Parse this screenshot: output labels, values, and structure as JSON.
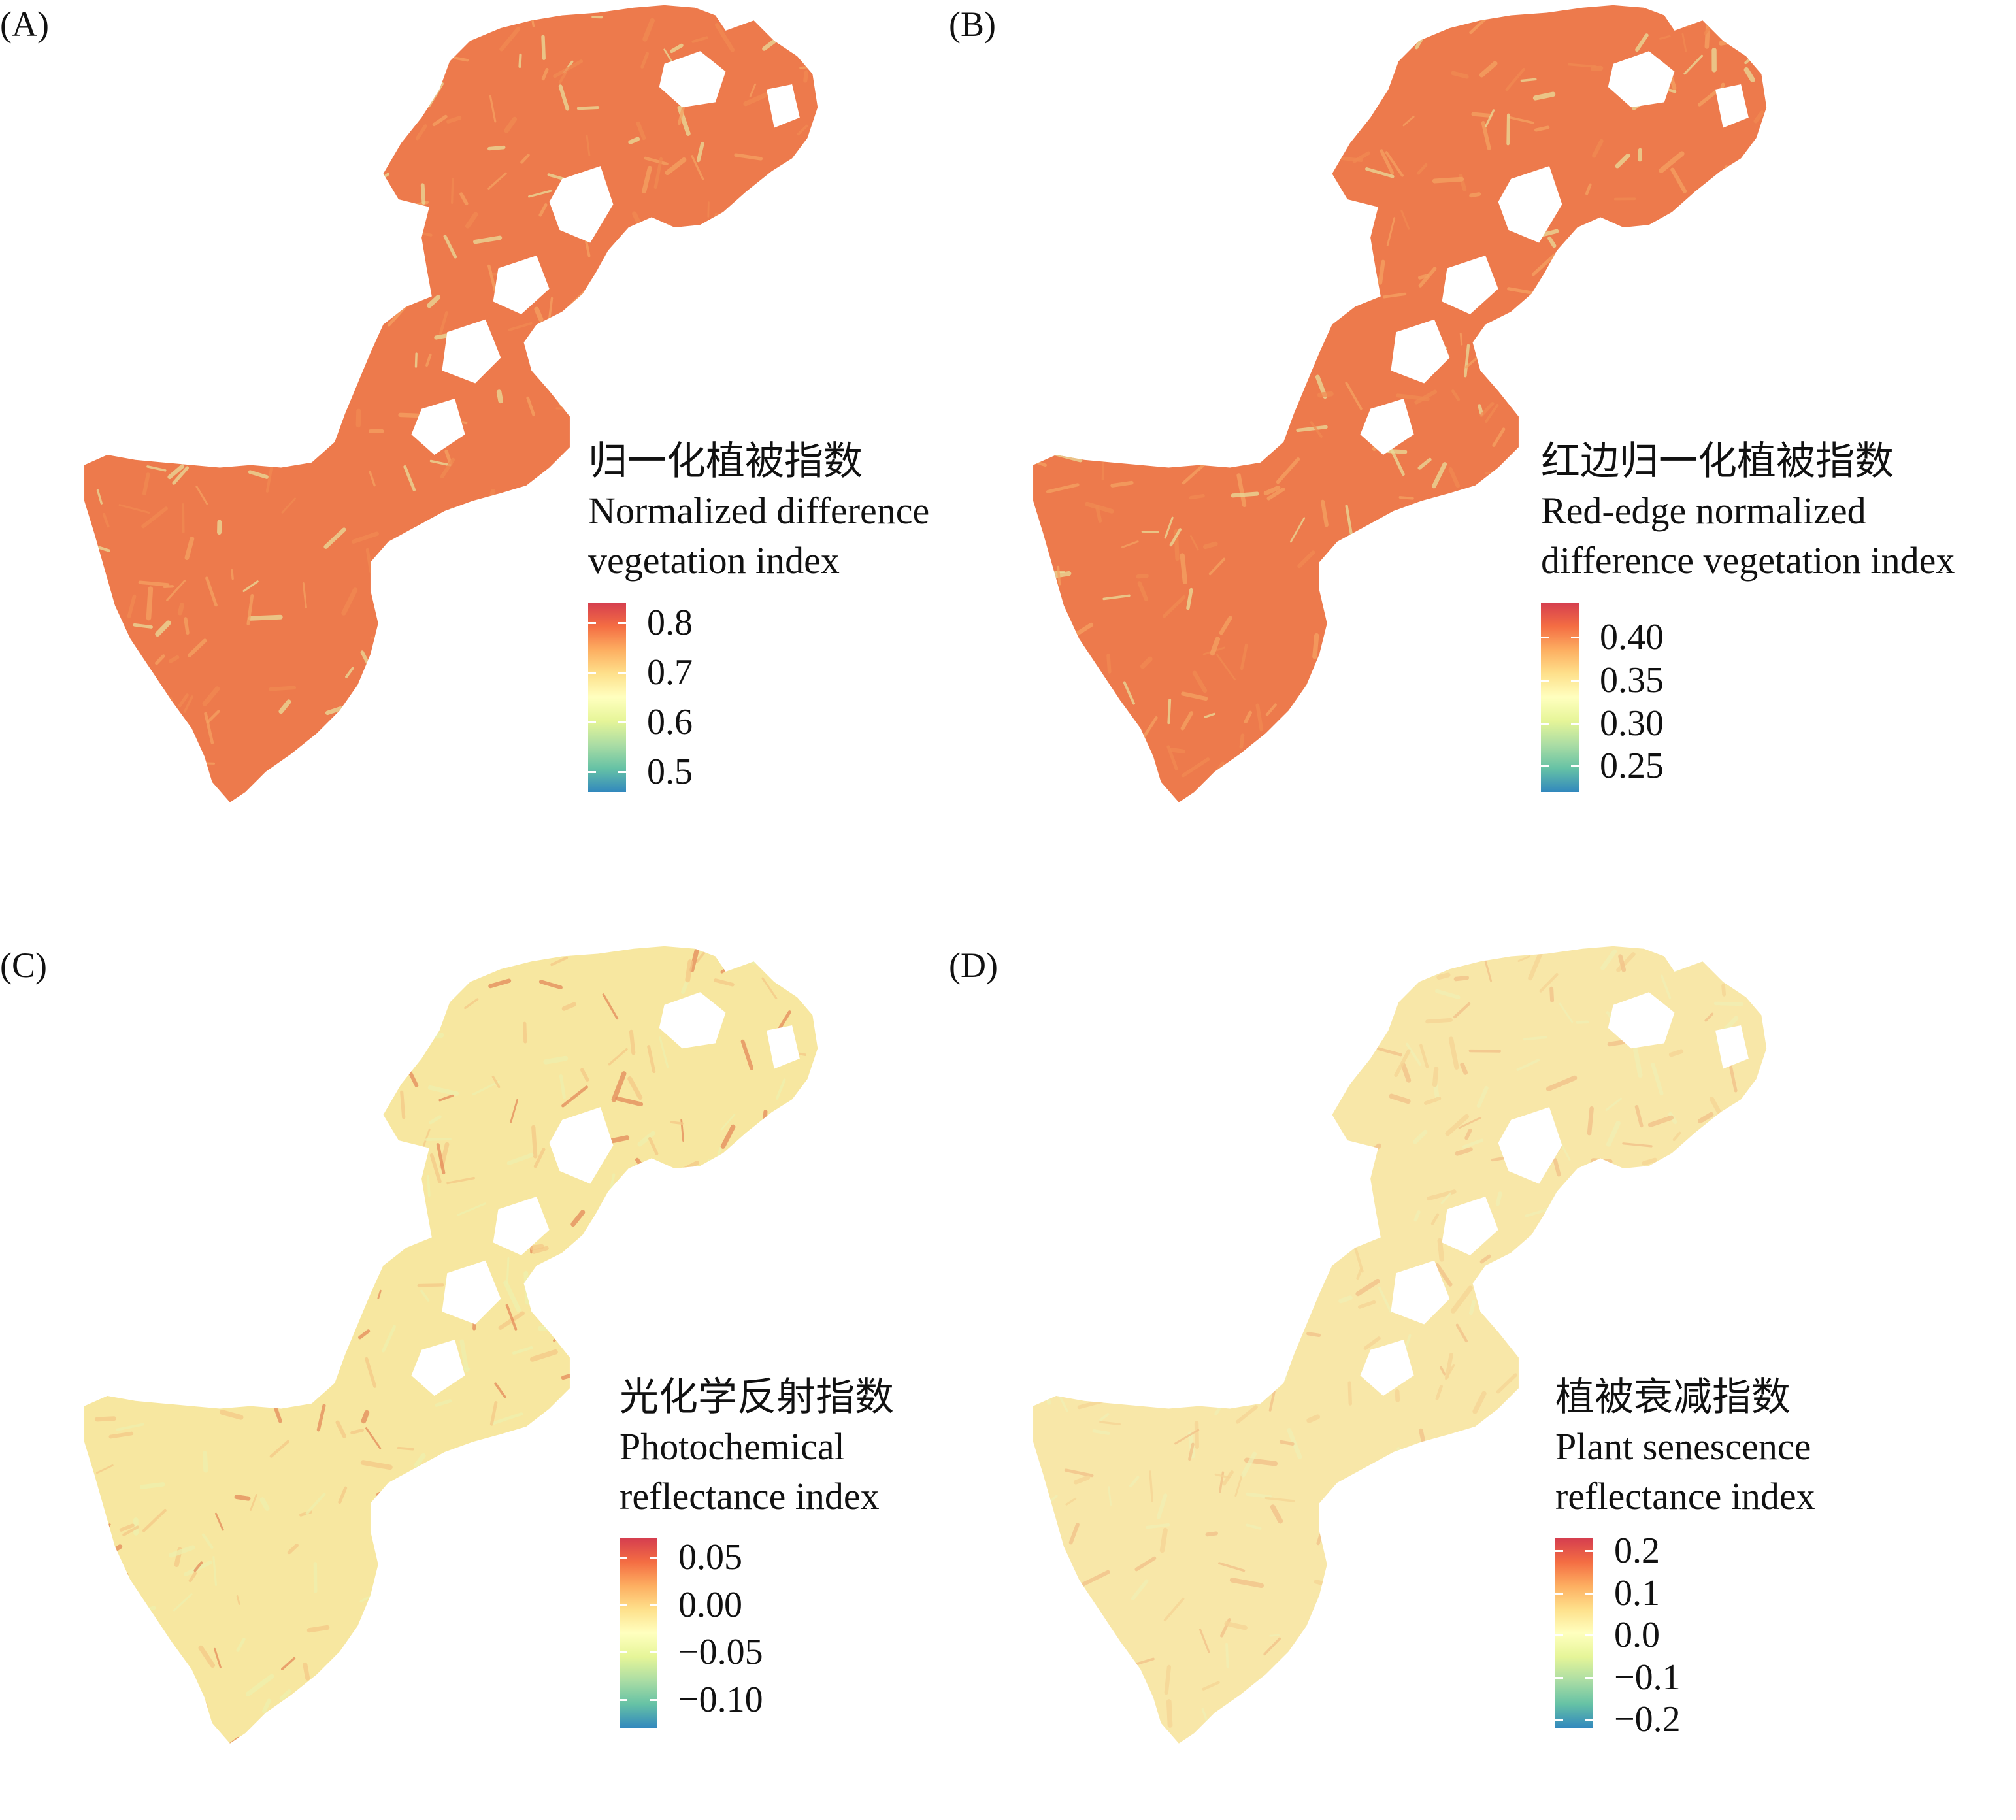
{
  "palette": [
    "#d53e4f",
    "#f46d43",
    "#fdae61",
    "#fee08b",
    "#ffffbf",
    "#e6f598",
    "#abdda4",
    "#66c2a5",
    "#3288bd"
  ],
  "panels": [
    {
      "label": "(A)",
      "title_cn": "归一化植被指数",
      "title_en_1": "Normalized difference",
      "title_en_2": "vegetation index",
      "ticks": [
        "0.8",
        "0.7",
        "0.6",
        "0.5"
      ],
      "tick_values": [
        0.8,
        0.7,
        0.6,
        0.5
      ],
      "range": [
        0.46,
        0.84
      ],
      "map_colors": [
        "#ed7a4c",
        "#f08a52",
        "#f4a262",
        "#e9dd9a"
      ]
    },
    {
      "label": "(B)",
      "title_cn": "红边归一化植被指数",
      "title_en_1": "Red-edge normalized",
      "title_en_2": "difference vegetation index",
      "ticks": [
        "0.40",
        "0.35",
        "0.30",
        "0.25"
      ],
      "tick_values": [
        0.4,
        0.35,
        0.3,
        0.25
      ],
      "range": [
        0.22,
        0.44
      ],
      "map_colors": [
        "#ed7a4c",
        "#f08a52",
        "#f4a262",
        "#e9dd9a"
      ]
    },
    {
      "label": "(C)",
      "title_cn": "光化学反射指数",
      "title_en_1": "Photochemical",
      "title_en_2": "reflectance index",
      "ticks": [
        "0.05",
        "0.00",
        "−0.05",
        "−0.10"
      ],
      "tick_values": [
        0.05,
        0.0,
        -0.05,
        -0.1
      ],
      "range": [
        -0.13,
        0.07
      ],
      "map_colors": [
        "#f7e7a0",
        "#f5c987",
        "#eef0ae",
        "#e48a5a"
      ]
    },
    {
      "label": "(D)",
      "title_cn": "植被衰减指数",
      "title_en_1": "Plant senescence",
      "title_en_2": "reflectance index",
      "ticks": [
        "0.2",
        "0.1",
        "0.0",
        "−0.1",
        "−0.2"
      ],
      "tick_values": [
        0.2,
        0.1,
        0.0,
        -0.1,
        -0.2
      ],
      "range": [
        -0.22,
        0.23
      ],
      "map_colors": [
        "#f8e7a8",
        "#f6d494",
        "#f0efb4",
        "#f2c088"
      ]
    }
  ]
}
